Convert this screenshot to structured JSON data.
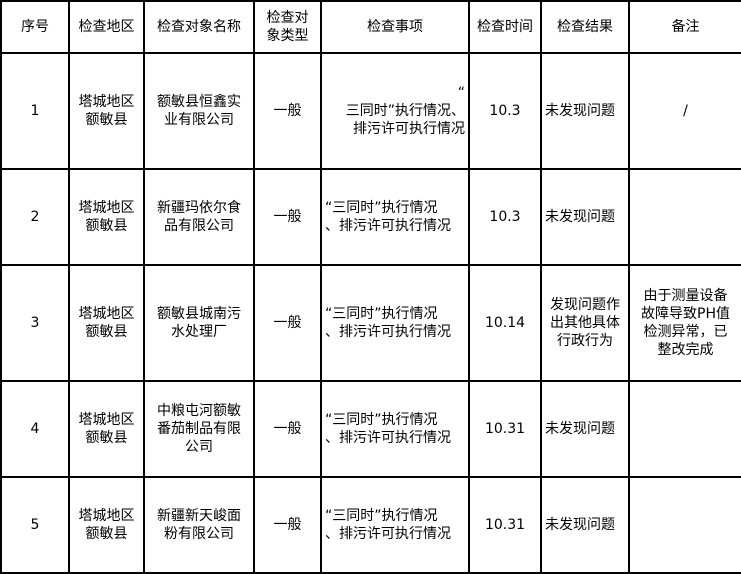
{
  "headers": [
    "序号",
    "检查地区",
    "检查对象名称",
    "检查对\n象类型",
    "检查事项",
    "检查时间",
    "检查结果",
    "备注"
  ],
  "rows": [
    {
      "no": "1",
      "region": "塔城地区\n额敏县",
      "name": "额敏县恒鑫实\n业有限公司",
      "type": "一般",
      "item": "“\n三同时”执行情况、\n排污许可执行情况",
      "date": "10.3",
      "result": "未发现问题",
      "note": "/"
    },
    {
      "no": "2",
      "region": "塔城地区\n额敏县",
      "name": "新疆玛依尔食\n品有限公司",
      "type": "一般",
      "item": "“三同时”执行情况\n、排污许可执行情况",
      "date": "10.3",
      "result": "未发现问题",
      "note": ""
    },
    {
      "no": "3",
      "region": "塔城地区\n额敏县",
      "name": "额敏县城南污\n水处理厂",
      "type": "一般",
      "item": "“三同时”执行情况\n、排污许可执行情况",
      "date": "10.14",
      "result": "发现问题作\n出其他具体\n行政行为",
      "note": "由于测量设备\n故障导致PH值\n检测异常，已\n整改完成"
    },
    {
      "no": "4",
      "region": "塔城地区\n额敏县",
      "name": "中粮屯河额敏\n番茄制品有限\n公司",
      "type": "一般",
      "item": "“三同时”执行情况\n、排污许可执行情况",
      "date": "10.31",
      "result": "未发现问题",
      "note": ""
    },
    {
      "no": "5",
      "region": "塔城地区\n额敏县",
      "name": "新疆新天峻面\n粉有限公司",
      "type": "一般",
      "item": "“三同时”执行情况\n、排污许可执行情况",
      "date": "10.31",
      "result": "未发现问题",
      "note": ""
    }
  ]
}
